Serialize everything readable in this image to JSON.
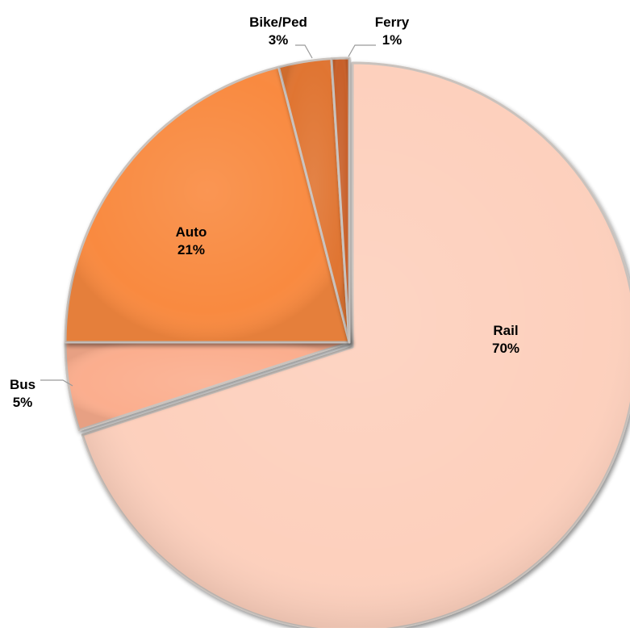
{
  "chart_data": {
    "type": "pie",
    "title": "",
    "slices": [
      {
        "label": "Rail",
        "value": 70,
        "value_label": "70%",
        "color": "#FDD0BD"
      },
      {
        "label": "Bus",
        "value": 5,
        "value_label": "5%",
        "color": "#FBAE8E"
      },
      {
        "label": "Auto",
        "value": 21,
        "value_label": "21%",
        "color": "#F98A3F"
      },
      {
        "label": "Bike/Ped",
        "value": 3,
        "value_label": "3%",
        "color": "#E07432"
      },
      {
        "label": "Ferry",
        "value": 1,
        "value_label": "1%",
        "color": "#C8602A"
      }
    ],
    "start_angle_deg": 0,
    "direction": "clockwise",
    "exploded": [
      "Rail"
    ],
    "legend": "none",
    "data_labels": "category name and percentage"
  }
}
